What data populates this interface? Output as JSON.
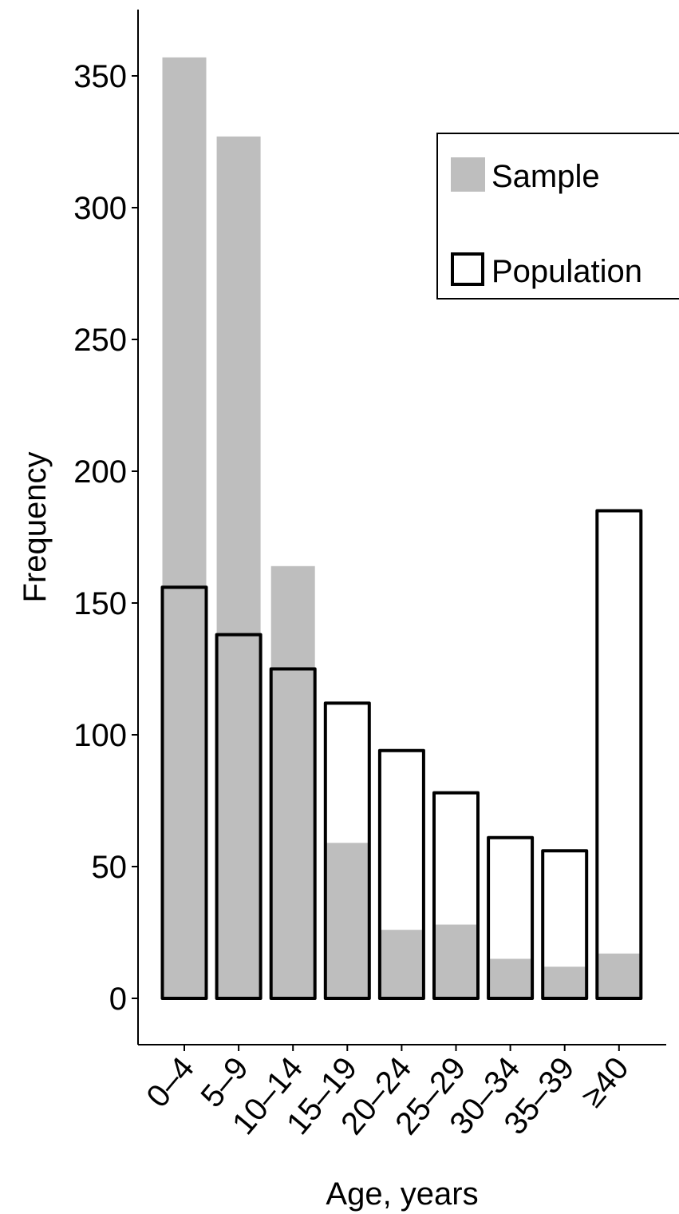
{
  "chart_data": {
    "type": "bar",
    "categories": [
      "0–4",
      "5–9",
      "10–14",
      "15–19",
      "20–24",
      "25–29",
      "30–34",
      "35–39",
      "≥40"
    ],
    "series": [
      {
        "name": "Sample",
        "values": [
          357,
          327,
          164,
          59,
          26,
          28,
          15,
          12,
          17
        ],
        "style": "filled",
        "color": "#bebebe"
      },
      {
        "name": "Population",
        "values": [
          156,
          138,
          125,
          112,
          94,
          78,
          61,
          56,
          185
        ],
        "style": "outline",
        "color": "#000000"
      }
    ],
    "xlabel": "Age, years",
    "ylabel": "Frequency",
    "ylim": [
      -17,
      375
    ],
    "yticks": [
      0,
      50,
      100,
      150,
      200,
      250,
      300,
      350
    ],
    "legend": {
      "position": "top-right",
      "entries": [
        "Sample",
        "Population"
      ]
    },
    "grid": false
  }
}
